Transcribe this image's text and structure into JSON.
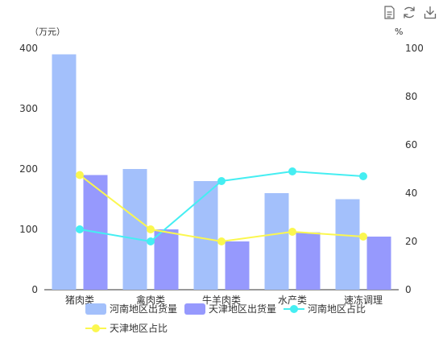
{
  "toolbox": {
    "icons": [
      "data-view-icon",
      "refresh-icon",
      "download-icon"
    ]
  },
  "chart_data": {
    "type": "bar",
    "categories": [
      "猪肉类",
      "禽肉类",
      "牛羊肉类",
      "水产类",
      "速冻调理"
    ],
    "y_left": {
      "unit": "（万元）",
      "ticks": [
        "0",
        "100",
        "200",
        "300",
        "400"
      ],
      "min": 0,
      "max": 400
    },
    "y_right": {
      "unit": "%",
      "ticks": [
        "0",
        "20",
        "40",
        "60",
        "80",
        "100"
      ],
      "min": 0,
      "max": 100
    },
    "series": [
      {
        "name": "河南地区出货量",
        "kind": "bar",
        "axis": "left",
        "color": "#a3c0fb",
        "values": [
          390,
          200,
          180,
          160,
          150
        ]
      },
      {
        "name": "天津地区出货量",
        "kind": "bar",
        "axis": "left",
        "color": "#9699fd",
        "values": [
          190,
          100,
          80,
          95,
          88
        ]
      },
      {
        "name": "河南地区占比",
        "kind": "line",
        "axis": "right",
        "color": "#45eef2",
        "values": [
          25,
          20,
          45,
          49,
          47
        ]
      },
      {
        "name": "天津地区占比",
        "kind": "line",
        "axis": "right",
        "color": "#fbf74f",
        "values": [
          47.5,
          25,
          20,
          24,
          22
        ]
      }
    ],
    "legend_position": "bottom"
  }
}
